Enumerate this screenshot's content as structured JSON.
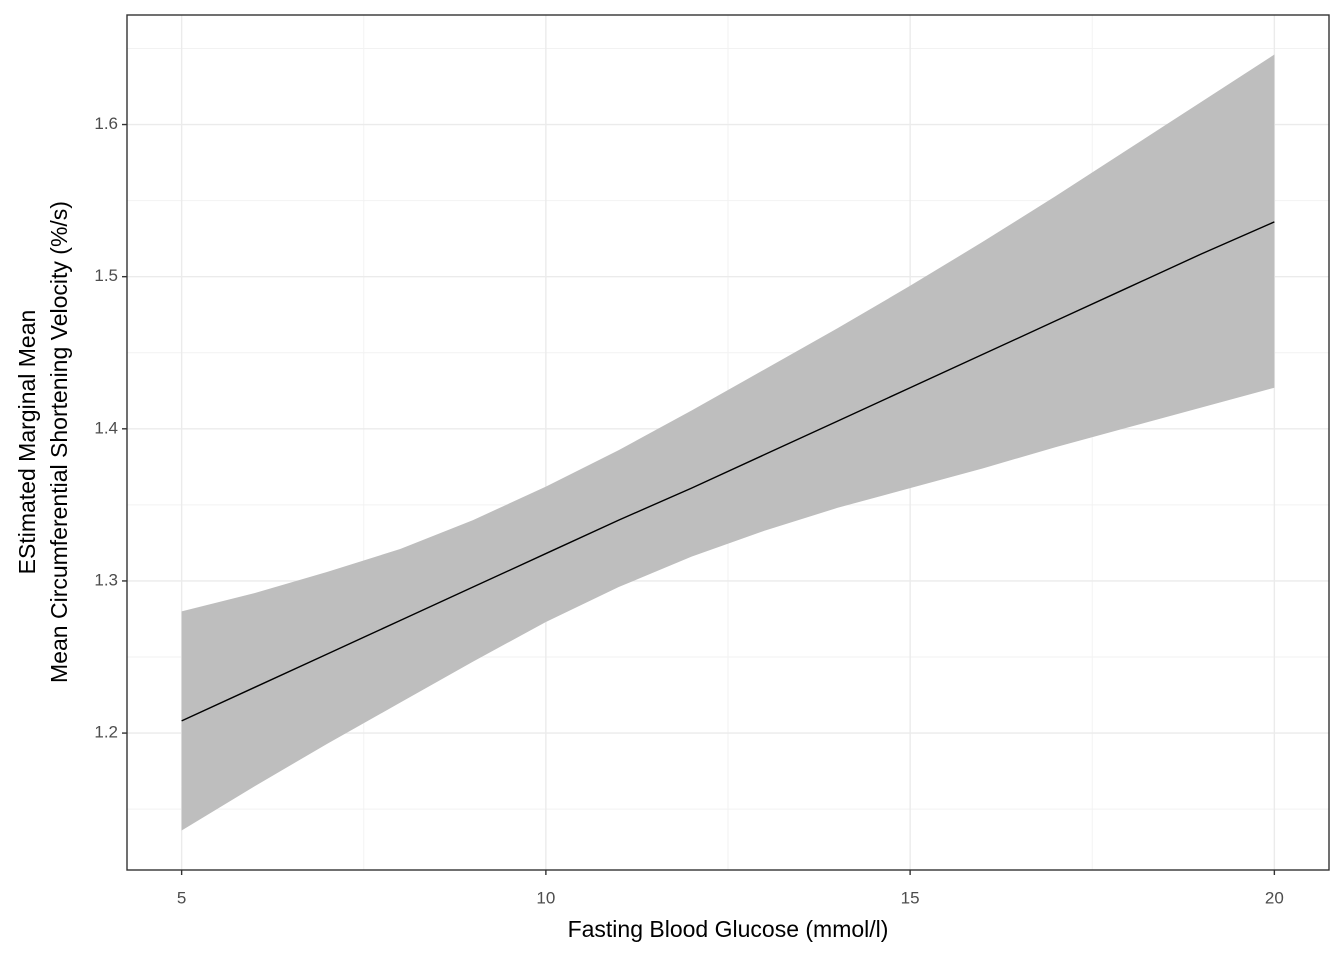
{
  "chart_data": {
    "type": "line",
    "xlabel": "Fasting Blood Glucose (mmol/l)",
    "ylabel": [
      "EStimated Marginal Mean",
      "Mean Circumferential Shortening Velocity (%/s)"
    ],
    "x": [
      5,
      6,
      7,
      8,
      9,
      10,
      11,
      12,
      13,
      14,
      15,
      16,
      17,
      18,
      19,
      20
    ],
    "values": [
      1.208,
      1.23,
      1.252,
      1.274,
      1.296,
      1.318,
      1.34,
      1.361,
      1.383,
      1.405,
      1.427,
      1.449,
      1.471,
      1.493,
      1.515,
      1.536
    ],
    "lower": [
      1.136,
      1.165,
      1.193,
      1.22,
      1.247,
      1.273,
      1.296,
      1.316,
      1.333,
      1.348,
      1.361,
      1.374,
      1.388,
      1.401,
      1.414,
      1.427
    ],
    "upper": [
      1.28,
      1.292,
      1.306,
      1.321,
      1.34,
      1.362,
      1.386,
      1.412,
      1.439,
      1.466,
      1.494,
      1.523,
      1.553,
      1.584,
      1.615,
      1.646
    ],
    "color": "#000000",
    "band_color": "#bebebe",
    "xlim": [
      4.25,
      20.75
    ],
    "xticks": [
      5,
      10,
      15,
      20
    ],
    "ylim": [
      1.11,
      1.672
    ],
    "yticks": [
      1.2,
      1.3,
      1.4,
      1.5,
      1.6
    ],
    "grid": true
  }
}
